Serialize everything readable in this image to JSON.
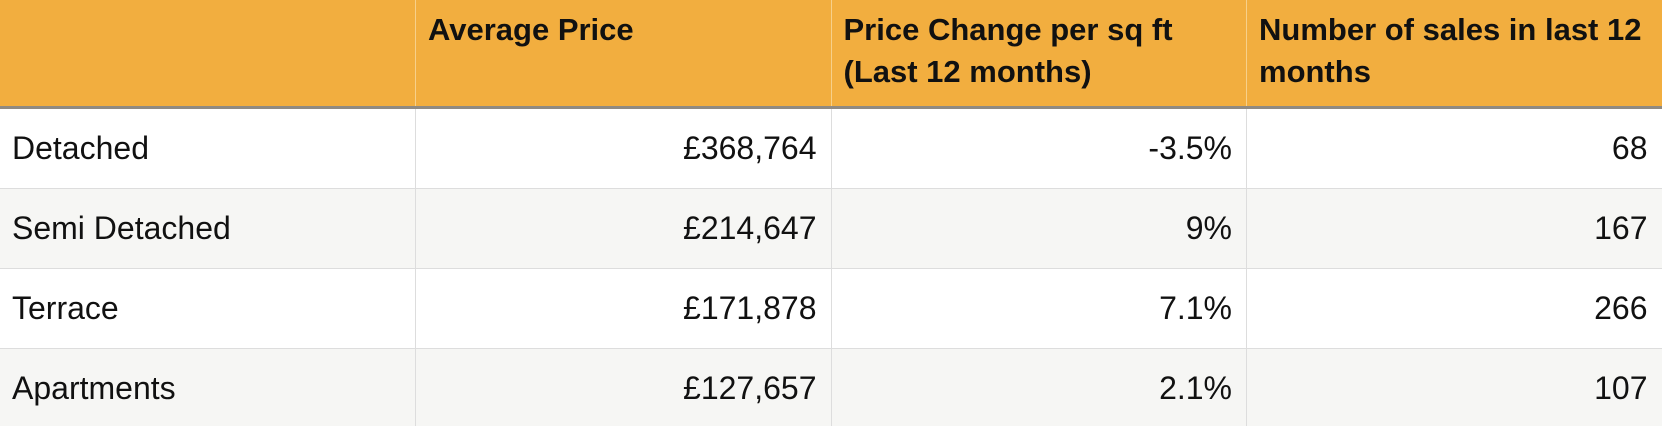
{
  "table": {
    "header": [
      "Average Price",
      "Price Change per sq ft (Last 12 months)",
      "Number of sales in last 12 months"
    ],
    "rows": [
      [
        "Detached",
        "£368,764",
        "-3.5%",
        "68"
      ],
      [
        "Semi Detached",
        "£214,647",
        "9%",
        "167"
      ],
      [
        "Terrace",
        "£171,878",
        "7.1%",
        "266"
      ],
      [
        "Apartments",
        "£127,657",
        "2.1%",
        "107"
      ]
    ]
  }
}
